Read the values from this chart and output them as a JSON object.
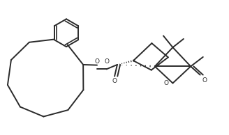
{
  "line_color": "#2a2a2a",
  "line_width": 1.4,
  "fig_width": 3.28,
  "fig_height": 1.94,
  "dpi": 100,
  "xlim": [
    0,
    10
  ],
  "ylim": [
    0,
    6
  ]
}
